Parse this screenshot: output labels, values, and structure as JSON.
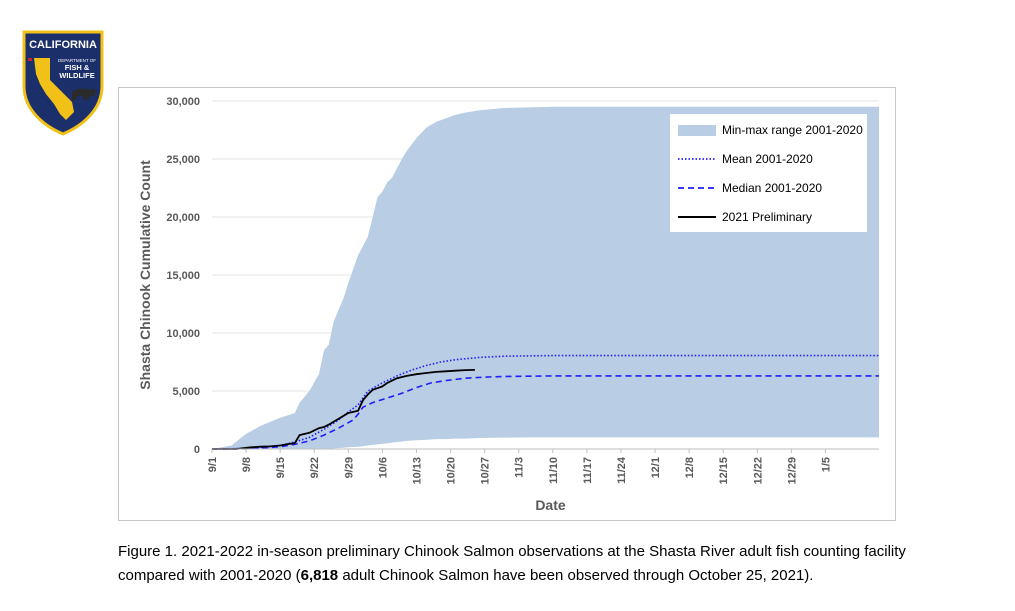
{
  "logo": {
    "line1": "CALIFORNIA",
    "line2": "DEPARTMENT OF",
    "line3": "FISH &",
    "line4": "WILDLIFE",
    "colors": {
      "navy": "#1b2f6b",
      "gold": "#f2c118",
      "red": "#c0272d"
    }
  },
  "chart_data": {
    "type": "area",
    "xlabel": "Date",
    "ylabel": "Shasta Chinook Cumulative Count",
    "ylim": [
      0,
      30000
    ],
    "yticks": [
      0,
      5000,
      10000,
      15000,
      20000,
      25000,
      30000
    ],
    "ytick_labels": [
      "0",
      "5,000",
      "10,000",
      "15,000",
      "20,000",
      "25,000",
      "30,000"
    ],
    "xticks": [
      "9/1",
      "9/8",
      "9/15",
      "9/22",
      "9/29",
      "10/6",
      "10/13",
      "10/20",
      "10/27",
      "11/3",
      "11/10",
      "11/17",
      "11/24",
      "12/1",
      "12/8",
      "12/15",
      "12/22",
      "12/29",
      "1/5"
    ],
    "x_range_days": [
      0,
      137
    ],
    "legend_position": "top-right",
    "series": [
      {
        "name": "Min-max range 2001-2020",
        "kind": "band",
        "color": "#b9cde4",
        "x": [
          0,
          4,
          7,
          10,
          14,
          17,
          18,
          20,
          22,
          23,
          24,
          25,
          27,
          28,
          30,
          31,
          32,
          33,
          34,
          35,
          36,
          37,
          38,
          39,
          40,
          42,
          44,
          46,
          48,
          50,
          52,
          55,
          60,
          65,
          70,
          80,
          100,
          137
        ],
        "upper": [
          0,
          300,
          1300,
          2000,
          2700,
          3100,
          4000,
          5000,
          6500,
          8500,
          9000,
          11000,
          13000,
          14300,
          16700,
          17500,
          18300,
          20000,
          21700,
          22200,
          23000,
          23400,
          24200,
          25000,
          25700,
          26800,
          27700,
          28200,
          28500,
          28800,
          29000,
          29200,
          29400,
          29450,
          29500,
          29500,
          29500,
          29500
        ],
        "lower": [
          0,
          0,
          0,
          0,
          0,
          0,
          0,
          0,
          0,
          0,
          0,
          50,
          100,
          150,
          200,
          250,
          300,
          350,
          400,
          450,
          500,
          550,
          600,
          650,
          700,
          750,
          800,
          850,
          850,
          900,
          900,
          950,
          980,
          1000,
          1000,
          1000,
          1000,
          1000
        ]
      },
      {
        "name": "Mean 2001-2020",
        "kind": "line",
        "style": "dotted",
        "color": "#1f1fff",
        "x": [
          0,
          7,
          10,
          14,
          17,
          20,
          23,
          26,
          28,
          30,
          32,
          35,
          38,
          41,
          44,
          47,
          50,
          55,
          60,
          70,
          80,
          100,
          137
        ],
        "y": [
          0,
          50,
          150,
          300,
          600,
          1000,
          1700,
          2500,
          3200,
          3800,
          5000,
          5700,
          6300,
          6800,
          7200,
          7500,
          7700,
          7900,
          8000,
          8050,
          8050,
          8050,
          8050
        ]
      },
      {
        "name": "Median 2001-2020",
        "kind": "line",
        "style": "dashed",
        "color": "#1f1fff",
        "x": [
          0,
          7,
          10,
          14,
          17,
          20,
          23,
          26,
          29,
          30,
          31,
          33,
          36,
          39,
          42,
          45,
          48,
          52,
          56,
          60,
          70,
          80,
          100,
          137
        ],
        "y": [
          0,
          20,
          80,
          200,
          400,
          700,
          1200,
          1800,
          2500,
          3000,
          3600,
          4000,
          4400,
          4800,
          5300,
          5700,
          5900,
          6100,
          6200,
          6250,
          6300,
          6300,
          6300,
          6300
        ]
      },
      {
        "name": "2021 Preliminary",
        "kind": "line",
        "style": "solid",
        "color": "#000000",
        "x": [
          0,
          5,
          8,
          10,
          12,
          14,
          16,
          17,
          18,
          20,
          21,
          22,
          23,
          24,
          26,
          28,
          29,
          30,
          31,
          32,
          33,
          35,
          36,
          37,
          38,
          40,
          42,
          44,
          46,
          48,
          50,
          52,
          54
        ],
        "y": [
          0,
          0,
          150,
          200,
          220,
          300,
          450,
          500,
          1200,
          1400,
          1600,
          1800,
          1900,
          2100,
          2600,
          3100,
          3200,
          3300,
          4200,
          4700,
          5100,
          5400,
          5700,
          5900,
          6100,
          6300,
          6450,
          6550,
          6650,
          6700,
          6750,
          6800,
          6818
        ]
      }
    ]
  },
  "caption": {
    "prefix": "Figure 1.  2021-2022 in-season preliminary Chinook Salmon observations at the Shasta River adult fish counting facility compared with 2001-2020 (",
    "bold": "6,818",
    "suffix": " adult Chinook Salmon have been observed through October 25, 2021)."
  }
}
